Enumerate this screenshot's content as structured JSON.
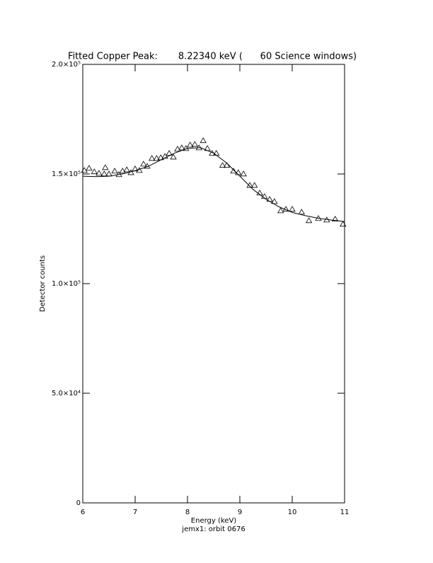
{
  "chart_data": {
    "type": "scatter",
    "title": "Fitted Copper Peak:       8.22340 keV (      60 Science windows)",
    "x_label": "Energy (keV)",
    "y_label": "Detector counts",
    "footer": "jemx1: orbit 0676",
    "xlim": [
      6,
      11
    ],
    "xticks": [
      6,
      7,
      8,
      9,
      10,
      11
    ],
    "ylim": [
      0,
      200000
    ],
    "yticks": [
      0,
      {
        "value": 50000,
        "label": "5.0×10⁴"
      },
      {
        "value": 100000,
        "label": "1.0×10⁵"
      },
      {
        "value": 150000,
        "label": "1.5×10⁵"
      },
      {
        "value": 200000,
        "label": "2.0×10⁵"
      }
    ],
    "series": [
      {
        "color": "#000000",
        "marker": "triangle",
        "x": [
          6.03,
          6.12,
          6.22,
          6.31,
          6.41,
          6.43,
          6.5,
          6.61,
          6.69,
          6.76,
          6.84,
          6.92,
          7.0,
          7.08,
          7.16,
          7.23,
          7.32,
          7.41,
          7.49,
          7.57,
          7.65,
          7.73,
          7.81,
          7.89,
          7.97,
          8.05,
          8.14,
          8.22,
          8.3,
          8.38,
          8.47,
          8.55,
          8.67,
          8.75,
          8.88,
          8.97,
          9.07,
          9.19,
          9.28,
          9.38,
          9.47,
          9.57,
          9.66,
          9.78,
          9.88,
          10.0,
          10.18,
          10.32,
          10.5,
          10.66,
          10.82,
          10.97
        ],
        "values": [
          151600,
          152600,
          151000,
          150300,
          150000,
          152900,
          150000,
          151300,
          149700,
          151300,
          151900,
          150600,
          152300,
          151600,
          154500,
          153500,
          157100,
          157100,
          157400,
          158000,
          159400,
          157700,
          161300,
          161900,
          161600,
          163200,
          163500,
          161900,
          165200,
          161600,
          159400,
          159400,
          153900,
          153900,
          151300,
          150600,
          150000,
          144800,
          144800,
          141300,
          139700,
          138400,
          137400,
          133200,
          133900,
          133900,
          132600,
          128700,
          129700,
          129000,
          129400,
          127100
        ]
      },
      {
        "color": "#000000",
        "marker": "line",
        "x": [
          6,
          6.25,
          6.5,
          6.75,
          7,
          7.25,
          7.5,
          7.75,
          8,
          8.25,
          8.5,
          8.75,
          9,
          9.25,
          9.5,
          9.75,
          10,
          10.25,
          10.5,
          10.75,
          11
        ],
        "values": [
          149000,
          148800,
          149000,
          150000,
          151500,
          153500,
          156500,
          159500,
          161700,
          162000,
          159500,
          155000,
          149000,
          143000,
          138500,
          135000,
          132500,
          131000,
          129800,
          129000,
          128300
        ]
      }
    ]
  }
}
